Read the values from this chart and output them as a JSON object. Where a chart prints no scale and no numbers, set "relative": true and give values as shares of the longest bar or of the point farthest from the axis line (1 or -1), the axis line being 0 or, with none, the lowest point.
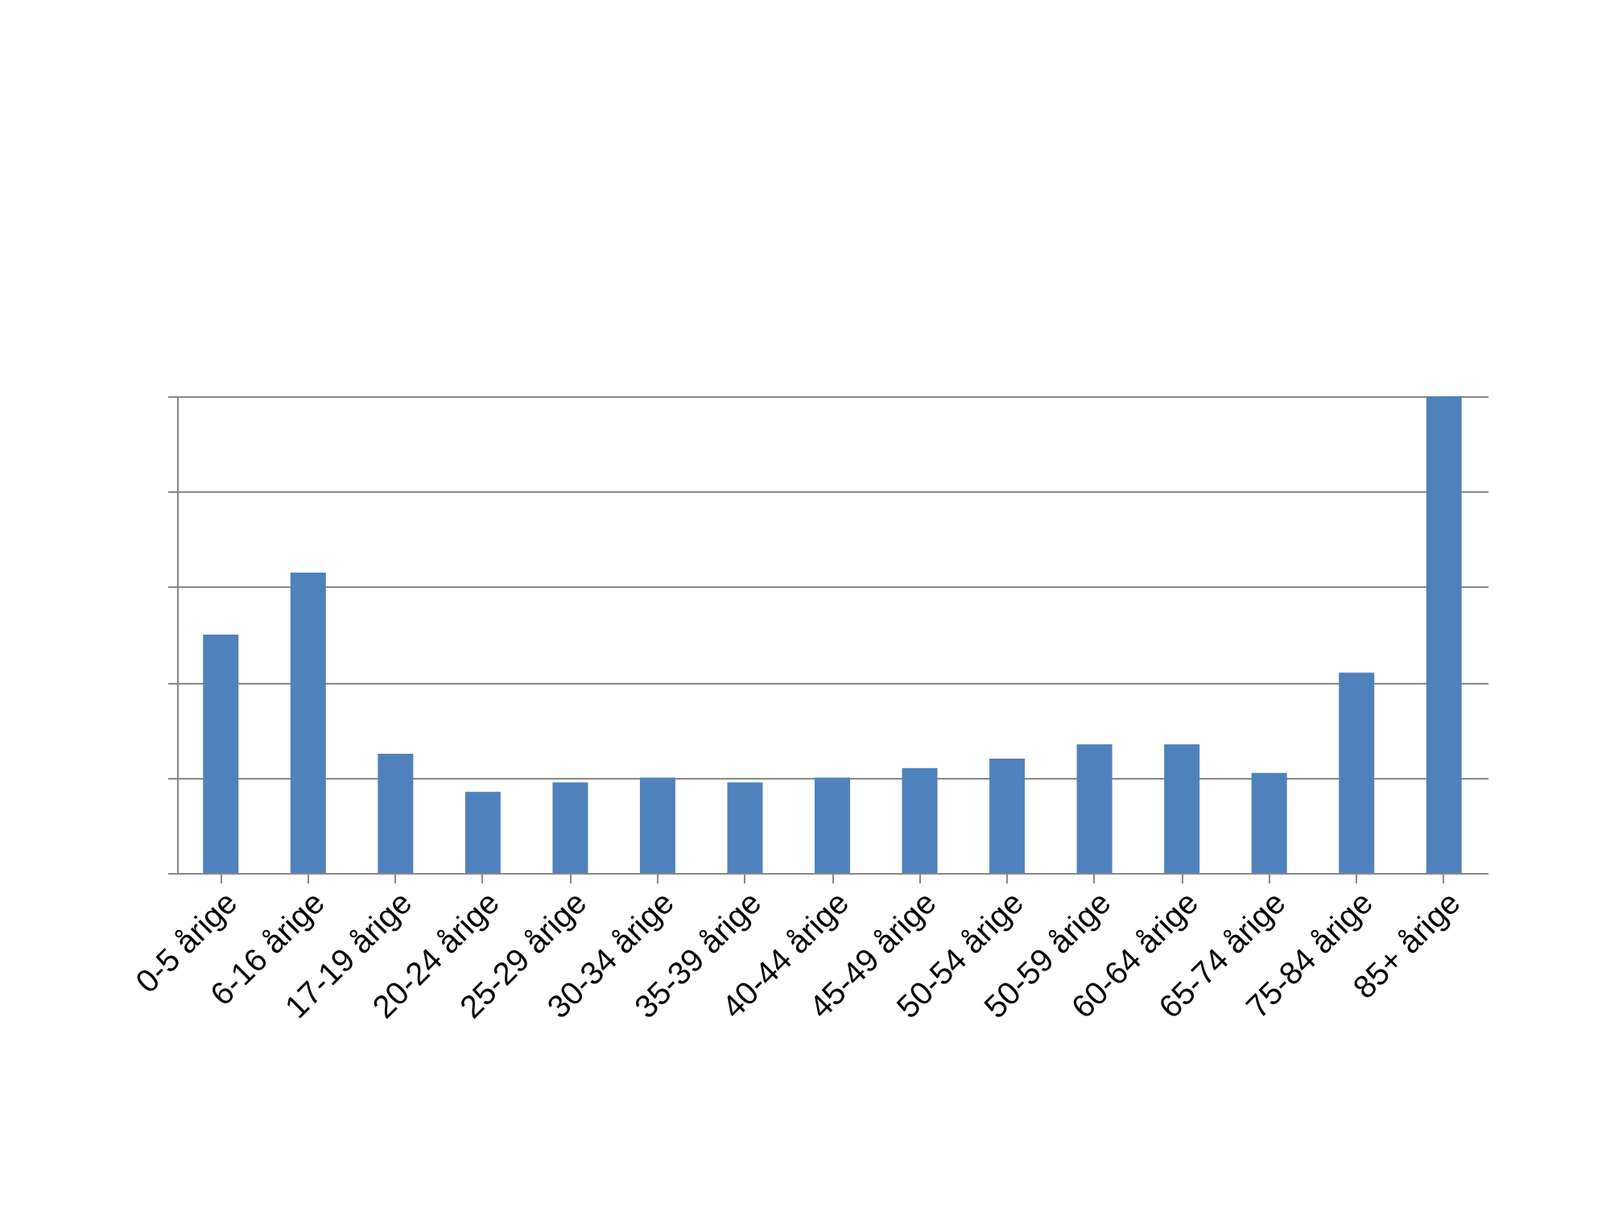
{
  "chart_data": {
    "type": "bar",
    "relative": true,
    "grid": "y",
    "color": "#4f81bd",
    "categories": [
      "0-5 årige",
      "6-16 årige",
      "17-19 årige",
      "20-24 årige",
      "25-29 årige",
      "30-34 årige",
      "35-39 årige",
      "40-44 årige",
      "45-49 årige",
      "50-54 årige",
      "50-59 årige",
      "60-64 årige",
      "65-74 årige",
      "75-84 årige",
      "85+ årige"
    ],
    "values": [
      0.5,
      0.63,
      0.25,
      0.17,
      0.19,
      0.2,
      0.19,
      0.2,
      0.22,
      0.24,
      0.27,
      0.27,
      0.21,
      0.42,
      1
    ]
  }
}
